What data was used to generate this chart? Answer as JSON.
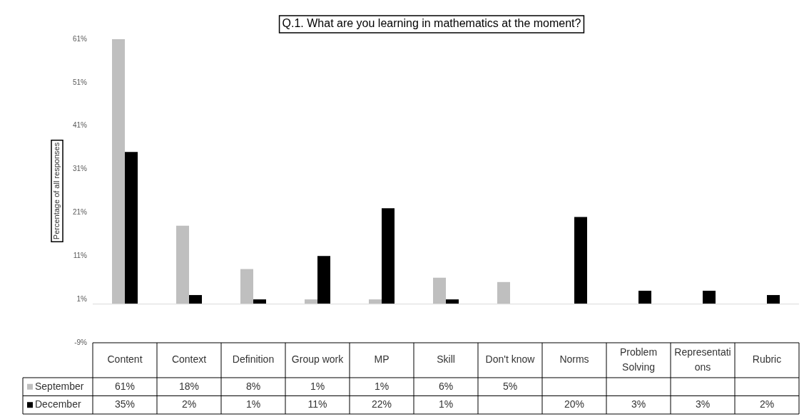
{
  "chart_data": {
    "type": "bar",
    "title": "Q.1. What are you learning in mathematics at the moment?",
    "ylabel": "Percentage of all responses",
    "categories": [
      "Content",
      "Context",
      "Definition",
      "Group work",
      "MP",
      "Skill",
      "Don't know",
      "Norms",
      "Problem Solving",
      "Representations",
      "Rubric"
    ],
    "series": [
      {
        "name": "September",
        "color": "#bfbfbf",
        "values": [
          61,
          18,
          8,
          1,
          1,
          6,
          5,
          null,
          null,
          null,
          null
        ],
        "value_labels": [
          "61%",
          "18%",
          "8%",
          "1%",
          "1%",
          "6%",
          "5%",
          null,
          null,
          null,
          null
        ]
      },
      {
        "name": "December",
        "color": "#000000",
        "values": [
          35,
          2,
          1,
          11,
          22,
          1,
          null,
          20,
          3,
          3,
          2
        ],
        "value_labels": [
          "35%",
          "2%",
          "1%",
          "11%",
          "22%",
          "1%",
          null,
          "20%",
          "3%",
          "3%",
          "2%"
        ]
      }
    ],
    "ylim": [
      -9,
      61
    ],
    "yticks": [
      {
        "value": -9,
        "label": "-9%"
      },
      {
        "value": 1,
        "label": "1%"
      },
      {
        "value": 11,
        "label": "11%"
      },
      {
        "value": 21,
        "label": "21%"
      },
      {
        "value": 31,
        "label": "31%"
      },
      {
        "value": 41,
        "label": "41%"
      },
      {
        "value": 51,
        "label": "51%"
      },
      {
        "value": 61,
        "label": "61%"
      }
    ],
    "grid": false,
    "legend": "bottom"
  }
}
